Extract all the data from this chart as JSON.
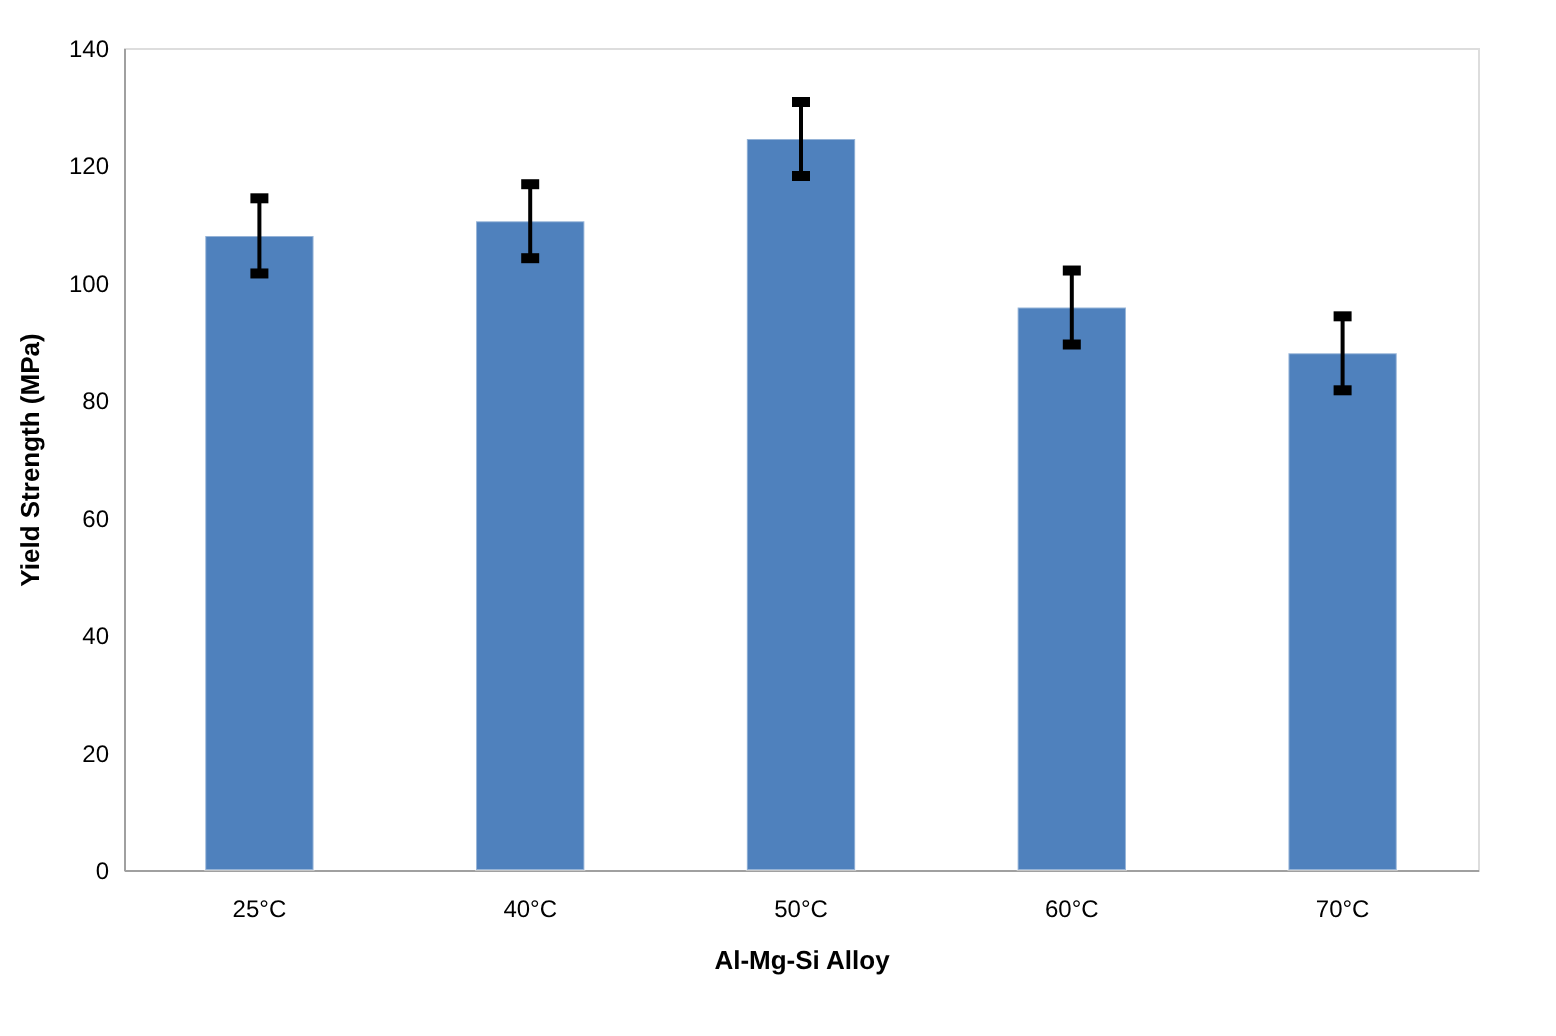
{
  "chart_data": {
    "type": "bar",
    "xlabel": "Al-Mg-Si Alloy",
    "ylabel": "Yield Strength (MPa)",
    "categories": [
      "25°C",
      "40°C",
      "50°C",
      "60°C",
      "70°C"
    ],
    "values": [
      108,
      110.5,
      124.5,
      95.8,
      88
    ],
    "errors": [
      6.4,
      6.3,
      6.3,
      6.3,
      6.3
    ],
    "color": "#4f81bd",
    "ylim": [
      0,
      140
    ],
    "yticks": [
      0,
      20,
      40,
      60,
      80,
      100,
      120,
      140
    ],
    "grid": false
  }
}
